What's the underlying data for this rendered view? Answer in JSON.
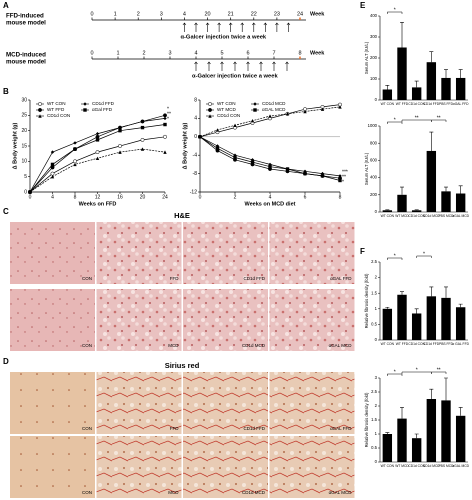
{
  "panel_labels": [
    "A",
    "B",
    "C",
    "D",
    "E",
    "F"
  ],
  "timelines": [
    {
      "label_lines": [
        "FFD-induced",
        "mouse model"
      ],
      "ticks": [
        "0",
        "1",
        "2",
        "3",
        "4",
        "20",
        "21",
        "22",
        "23",
        "24"
      ],
      "unit": "Week",
      "note": "α-Galcer injection twice a week"
    },
    {
      "label_lines": [
        "MCD-induced",
        "mouse model"
      ],
      "ticks": [
        "0",
        "1",
        "2",
        "3",
        "4",
        "5",
        "6",
        "7",
        "8"
      ],
      "unit": "Week",
      "note": "α-Galcer injection twice a week"
    }
  ],
  "histology": [
    {
      "title": "H&E",
      "rows": [
        [
          "CON",
          "FFD",
          "CD1d FFD",
          "αGAL FFD"
        ],
        [
          "CON",
          "MCD",
          "CD1d MCD",
          "αGAL MCD"
        ]
      ]
    },
    {
      "title": "Sirius red",
      "rows": [
        [
          "CON",
          "FFD",
          "CD1d FFD",
          "αGAL FFD"
        ],
        [
          "CON",
          "MCD",
          "CD1d MCD",
          "αGAL MCD"
        ]
      ]
    }
  ],
  "chart_data": [
    {
      "type": "line",
      "xlabel": "Weeks on FFD",
      "ylabel": "Δ Body weight (g)",
      "x": [
        0,
        4,
        8,
        12,
        16,
        20,
        24
      ],
      "xlim": [
        0,
        24
      ],
      "xticks": [
        0,
        4,
        8,
        12,
        16,
        20,
        24
      ],
      "ylim": [
        0,
        30
      ],
      "yticks": [
        0,
        5,
        10,
        15,
        20,
        25,
        30
      ],
      "series": [
        {
          "name": "WT CON",
          "color": "#000",
          "values": [
            0,
            6,
            10,
            13,
            15,
            17,
            18
          ]
        },
        {
          "name": "WT FFD",
          "color": "#000",
          "values": [
            0,
            8,
            14,
            18,
            21,
            23,
            25
          ]
        },
        {
          "name": "CD1d CON",
          "color": "#000",
          "values": [
            0,
            5,
            9,
            11,
            13,
            14,
            13
          ]
        },
        {
          "name": "CD1d FFD",
          "color": "#000",
          "values": [
            0,
            13,
            16,
            19,
            21,
            23,
            24
          ]
        },
        {
          "name": "αGal FFD",
          "color": "#000",
          "values": [
            0,
            9,
            14,
            17,
            20,
            21,
            22
          ]
        }
      ],
      "annotations": [
        "*",
        "**",
        "*"
      ]
    },
    {
      "type": "line",
      "xlabel": "Weeks on MCD diet",
      "ylabel": "Δ Body weight (g)",
      "x": [
        0,
        1,
        2,
        3,
        4,
        5,
        6,
        7,
        8
      ],
      "xlim": [
        0,
        8
      ],
      "xticks": [
        0,
        2,
        4,
        6,
        8
      ],
      "ylim": [
        -12,
        8
      ],
      "yticks": [
        -12,
        -8,
        -4,
        0,
        4,
        8
      ],
      "series": [
        {
          "name": "WT CON",
          "color": "#000",
          "values": [
            0,
            1,
            2,
            3,
            4,
            5,
            6,
            6.5,
            7
          ]
        },
        {
          "name": "WT MCD",
          "color": "#000",
          "values": [
            0,
            -3,
            -5,
            -6,
            -7,
            -7.5,
            -8,
            -8.5,
            -9
          ]
        },
        {
          "name": "CD1d CON",
          "color": "#000",
          "values": [
            0,
            1.5,
            2.5,
            3.5,
            4.5,
            5,
            5.5,
            6,
            6.5
          ]
        },
        {
          "name": "CD1d MCD",
          "color": "#000",
          "values": [
            0,
            -2,
            -4,
            -5,
            -6,
            -7,
            -7.5,
            -8,
            -8.5
          ]
        },
        {
          "name": "αGAL MCD",
          "color": "#000",
          "values": [
            0,
            -2.5,
            -4.5,
            -5.5,
            -6.5,
            -7,
            -8,
            -8.5,
            -9.5
          ]
        }
      ],
      "annotations": [
        "***",
        "**",
        "*"
      ]
    },
    {
      "type": "bar",
      "ylabel": "Serum ALT (IU/L)",
      "categories": [
        "WT CON",
        "WT FFD",
        "CD1d CON",
        "CD1d FFD",
        "PBS FFD",
        "αGAL FFD"
      ],
      "values": [
        50,
        250,
        60,
        180,
        105,
        105
      ],
      "errors": [
        20,
        120,
        30,
        50,
        40,
        40
      ],
      "ylim": [
        0,
        400
      ],
      "yticks": [
        0,
        100,
        200,
        300,
        400
      ],
      "color": "#000",
      "significance": [
        {
          "pair": [
            "WT CON",
            "WT FFD"
          ],
          "label": "*"
        }
      ]
    },
    {
      "type": "bar",
      "ylabel": "Serum ALT (IU/L)",
      "categories": [
        "WT CON",
        "WT MCD",
        "CD1d CON",
        "CD1d MCD",
        "PBS MCD",
        "αGAL MCD"
      ],
      "values": [
        20,
        200,
        20,
        710,
        240,
        215
      ],
      "errors": [
        5,
        90,
        5,
        220,
        50,
        90
      ],
      "ylim": [
        0,
        1000
      ],
      "yticks": [
        0,
        200,
        400,
        600,
        800,
        1000
      ],
      "color": "#000",
      "significance": [
        {
          "pair": [
            "WT CON",
            "WT MCD"
          ],
          "label": "*"
        },
        {
          "pair": [
            "WT MCD",
            "CD1d MCD"
          ],
          "label": "**"
        },
        {
          "pair": [
            "CD1d MCD",
            "PBS MCD"
          ],
          "label": "**"
        }
      ]
    },
    {
      "type": "bar",
      "ylabel": "Relative fibrosis density (fold)",
      "categories": [
        "WT CON",
        "WT FFD",
        "CD1d CON",
        "CD1d FFD",
        "PBS FFD",
        "α GAL FFD"
      ],
      "values": [
        1,
        1.45,
        0.85,
        1.4,
        1.35,
        1.05
      ],
      "errors": [
        0.05,
        0.1,
        0.15,
        0.3,
        0.35,
        0.1
      ],
      "ylim": [
        0,
        2.5
      ],
      "yticks": [
        0,
        0.5,
        1,
        1.5,
        2,
        2.5
      ],
      "color": "#000",
      "significance": [
        {
          "pair": [
            "WT CON",
            "WT FFD"
          ],
          "label": "*"
        },
        {
          "pair": [
            "CD1d CON",
            "CD1d FFD"
          ],
          "label": "*"
        }
      ]
    },
    {
      "type": "bar",
      "ylabel": "Relative fibrosis density (fold)",
      "categories": [
        "WT CON",
        "WT MCD",
        "CD1d CON",
        "CD1d MCD",
        "PBS MCD",
        "αGAL MCD"
      ],
      "values": [
        1,
        1.55,
        0.85,
        2.25,
        2.2,
        1.65
      ],
      "errors": [
        0.05,
        0.4,
        0.15,
        0.35,
        0.8,
        0.3
      ],
      "ylim": [
        0,
        3
      ],
      "yticks": [
        0,
        0.5,
        1,
        1.5,
        2,
        2.5,
        3
      ],
      "color": "#000",
      "significance": [
        {
          "pair": [
            "WT CON",
            "WT MCD"
          ],
          "label": "*"
        },
        {
          "pair": [
            "WT MCD",
            "CD1d MCD"
          ],
          "label": "*"
        },
        {
          "pair": [
            "CD1d MCD",
            "PBS MCD"
          ],
          "label": "**"
        }
      ]
    }
  ]
}
